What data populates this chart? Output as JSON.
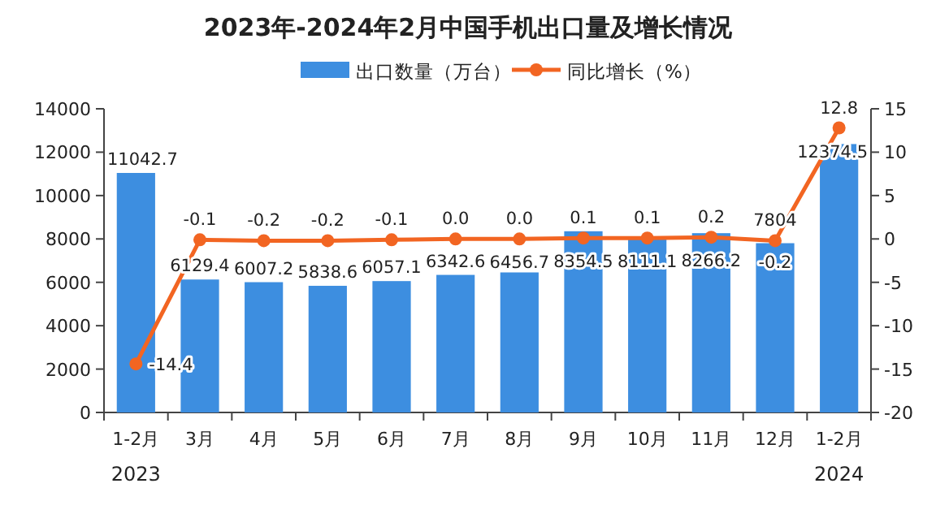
{
  "chart_data": {
    "type": "bar",
    "title": "2023年-2024年2月中国手机出口量及增长情况",
    "categories": [
      "1-2月",
      "3月",
      "4月",
      "5月",
      "6月",
      "7月",
      "8月",
      "9月",
      "10月",
      "11月",
      "12月",
      "1-2月"
    ],
    "series": [
      {
        "name": "出口数量（万台）",
        "color": "#3d8ee0",
        "values": [
          11042.7,
          6129.4,
          6007.2,
          5838.6,
          6057.1,
          6342.6,
          6456.7,
          8354.5,
          8111.1,
          8266.2,
          7804,
          12374.5
        ]
      },
      {
        "name": "同比增长（%）",
        "type": "line",
        "axis": "y2",
        "color": "#f26522",
        "values": [
          -14.4,
          -0.1,
          -0.2,
          -0.2,
          -0.1,
          0.0,
          0.0,
          0.1,
          0.1,
          0.2,
          -0.2,
          12.8
        ],
        "value_labels": [
          "-14.4",
          "-0.1",
          "-0.2",
          "-0.2",
          "-0.1",
          "0.0",
          "0.0",
          "0.1",
          "0.1",
          "0.2",
          "-0.2",
          "12.8"
        ]
      }
    ],
    "ylim": [
      0,
      14000
    ],
    "yticks": [
      0,
      2000,
      4000,
      6000,
      8000,
      10000,
      12000,
      14000
    ],
    "y2lim": [
      -20,
      15
    ],
    "y2ticks": [
      -20,
      -15,
      -10,
      -5,
      0,
      5,
      10,
      15
    ],
    "data_labels": true,
    "legend": "top",
    "grid": false,
    "marker": "circle",
    "line_style": "solid",
    "annotations": [
      "2023",
      "2024"
    ]
  }
}
